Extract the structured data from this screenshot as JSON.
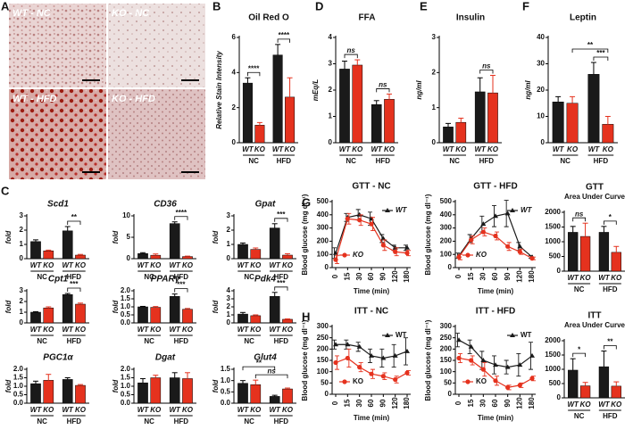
{
  "panel_letters": [
    "A",
    "B",
    "C",
    "D",
    "E",
    "F",
    "G",
    "H"
  ],
  "micrographs": [
    "WT - NC",
    "KO - NC",
    "WT - HFD",
    "KO - HFD"
  ],
  "chart_data": [
    {
      "type": "bar",
      "title": "Oil Red O",
      "ylabel": "Relative Stain Intensity",
      "categories": [
        "WT",
        "KO",
        "WT",
        "KO"
      ],
      "groups": [
        "NC",
        "HFD"
      ],
      "values": [
        3.4,
        1.0,
        5.0,
        2.6
      ],
      "errors": [
        0.3,
        0.15,
        0.6,
        1.1
      ],
      "colors": {
        "WT": "#1a1a1a",
        "KO": "#e5321e"
      },
      "ylim": [
        0,
        6
      ],
      "yticks": [
        0,
        2,
        4,
        6
      ],
      "brackets": [
        {
          "bars": [
            0,
            1
          ],
          "label": "****"
        },
        {
          "bars": [
            2,
            3
          ],
          "label": "****"
        }
      ]
    },
    {
      "type": "bar",
      "title": "FFA",
      "ylabel": "mEq/L",
      "categories": [
        "WT",
        "KO",
        "WT",
        "KO"
      ],
      "groups": [
        "NC",
        "HFD"
      ],
      "values": [
        2.8,
        2.95,
        1.45,
        1.65
      ],
      "errors": [
        0.3,
        0.2,
        0.15,
        0.2
      ],
      "colors": {
        "WT": "#1a1a1a",
        "KO": "#e5321e"
      },
      "ylim": [
        0,
        4
      ],
      "yticks": [
        0,
        1,
        2,
        3,
        4
      ],
      "brackets": [
        {
          "bars": [
            0,
            1
          ],
          "label": "ns"
        },
        {
          "bars": [
            2,
            3
          ],
          "label": "ns"
        }
      ]
    },
    {
      "type": "bar",
      "title": "Insulin",
      "ylabel": "ng/ml",
      "categories": [
        "WT",
        "KO",
        "WT",
        "KO"
      ],
      "groups": [
        "NC",
        "HFD"
      ],
      "values": [
        0.45,
        0.58,
        1.45,
        1.42
      ],
      "errors": [
        0.1,
        0.12,
        0.4,
        0.5
      ],
      "colors": {
        "WT": "#1a1a1a",
        "KO": "#e5321e"
      },
      "ylim": [
        0,
        3
      ],
      "yticks": [
        0,
        1,
        2,
        3
      ],
      "brackets": [
        {
          "bars": [
            2,
            3
          ],
          "label": "ns"
        }
      ]
    },
    {
      "type": "bar",
      "title": "Leptin",
      "ylabel": "ng/ml",
      "categories": [
        "WT",
        "KO",
        "WT",
        "KO"
      ],
      "groups": [
        "NC",
        "HFD"
      ],
      "values": [
        15.5,
        15,
        26,
        7
      ],
      "errors": [
        2,
        2.5,
        4.5,
        3
      ],
      "colors": {
        "WT": "#1a1a1a",
        "KO": "#e5321e"
      },
      "ylim": [
        0,
        40
      ],
      "yticks": [
        0,
        10,
        20,
        30,
        40
      ],
      "brackets": [
        {
          "bars": [
            2,
            3
          ],
          "label": "***"
        },
        {
          "bars": [
            1,
            3
          ],
          "label": "**"
        }
      ]
    },
    {
      "type": "bar",
      "title": "Scd1",
      "ylabel": "fold",
      "categories": [
        "WT",
        "KO",
        "WT",
        "KO"
      ],
      "groups": [
        "NC",
        "HFD"
      ],
      "values": [
        1.2,
        0.55,
        1.95,
        0.25
      ],
      "errors": [
        0.12,
        0.05,
        0.3,
        0.05
      ],
      "colors": {
        "WT": "#1a1a1a",
        "KO": "#e5321e"
      },
      "ylim": [
        0,
        3
      ],
      "yticks": [
        0,
        1,
        2,
        3
      ],
      "brackets": [
        {
          "bars": [
            2,
            3
          ],
          "label": "**"
        }
      ]
    },
    {
      "type": "bar",
      "title": "CD36",
      "ylabel": "fold",
      "categories": [
        "WT",
        "KO",
        "WT",
        "KO"
      ],
      "groups": [
        "NC",
        "HFD"
      ],
      "values": [
        1.2,
        0.8,
        8.2,
        0.5
      ],
      "errors": [
        0.2,
        0.3,
        0.4,
        0.1
      ],
      "colors": {
        "WT": "#1a1a1a",
        "KO": "#e5321e"
      },
      "ylim": [
        0,
        10
      ],
      "yticks": [
        0,
        5,
        10
      ],
      "brackets": [
        {
          "bars": [
            2,
            3
          ],
          "label": "****"
        }
      ]
    },
    {
      "type": "bar",
      "title": "Gpat",
      "ylabel": "fold",
      "categories": [
        "WT",
        "KO",
        "WT",
        "KO"
      ],
      "groups": [
        "NC",
        "HFD"
      ],
      "values": [
        1.0,
        0.65,
        2.15,
        0.25
      ],
      "errors": [
        0.1,
        0.1,
        0.3,
        0.1
      ],
      "colors": {
        "WT": "#1a1a1a",
        "KO": "#e5321e"
      },
      "ylim": [
        0,
        3
      ],
      "yticks": [
        0,
        1,
        2,
        3
      ],
      "brackets": [
        {
          "bars": [
            2,
            3
          ],
          "label": "***"
        }
      ]
    },
    {
      "type": "bar",
      "title": "Cpt1",
      "ylabel": "fold",
      "categories": [
        "WT",
        "KO",
        "WT",
        "KO"
      ],
      "groups": [
        "NC",
        "HFD"
      ],
      "values": [
        1.0,
        1.4,
        2.65,
        1.75
      ],
      "errors": [
        0.05,
        0.1,
        0.1,
        0.1
      ],
      "colors": {
        "WT": "#1a1a1a",
        "KO": "#e5321e"
      },
      "ylim": [
        0,
        3
      ],
      "yticks": [
        0,
        1,
        2,
        3
      ],
      "brackets": [
        {
          "bars": [
            2,
            3
          ],
          "label": "***"
        }
      ]
    },
    {
      "type": "bar",
      "title": "PPARγ",
      "ylabel": "fold",
      "categories": [
        "WT",
        "KO",
        "WT",
        "KO"
      ],
      "groups": [
        "NC",
        "HFD"
      ],
      "values": [
        1.0,
        0.97,
        1.65,
        0.85
      ],
      "errors": [
        0.03,
        0.05,
        0.15,
        0.05
      ],
      "colors": {
        "WT": "#1a1a1a",
        "KO": "#e5321e"
      },
      "ylim": [
        0,
        2
      ],
      "yticks": [
        {
          "value": 0,
          "label": "0.0"
        },
        {
          "value": 0.5,
          "label": "0.5"
        },
        {
          "value": 1,
          "label": "1.0"
        },
        {
          "value": 1.5,
          "label": "1.5"
        },
        {
          "value": 2,
          "label": "2.0"
        }
      ],
      "brackets": [
        {
          "bars": [
            2,
            3
          ],
          "label": "***"
        }
      ]
    },
    {
      "type": "bar",
      "title": "Pdk4",
      "ylabel": "fold",
      "categories": [
        "WT",
        "KO",
        "WT",
        "KO"
      ],
      "groups": [
        "NC",
        "HFD"
      ],
      "values": [
        1.1,
        0.9,
        3.3,
        0.45
      ],
      "errors": [
        0.2,
        0.1,
        0.5,
        0.05
      ],
      "colors": {
        "WT": "#1a1a1a",
        "KO": "#e5321e"
      },
      "ylim": [
        0,
        4
      ],
      "yticks": [
        0,
        1,
        2,
        3,
        4
      ],
      "brackets": [
        {
          "bars": [
            2,
            3
          ],
          "label": "***"
        }
      ]
    },
    {
      "type": "bar",
      "title": "PGC1α",
      "ylabel": "fold",
      "categories": [
        "WT",
        "KO",
        "WT",
        "KO"
      ],
      "groups": [
        "NC",
        "HFD"
      ],
      "values": [
        1.15,
        1.35,
        1.4,
        1.05
      ],
      "errors": [
        0.15,
        0.35,
        0.1,
        0.05
      ],
      "colors": {
        "WT": "#1a1a1a",
        "KO": "#e5321e"
      },
      "ylim": [
        0,
        2
      ],
      "yticks": [
        {
          "value": 0,
          "label": "0.0"
        },
        {
          "value": 0.5,
          "label": "0.5"
        },
        {
          "value": 1,
          "label": "1.0"
        },
        {
          "value": 1.5,
          "label": "1.5"
        },
        {
          "value": 2,
          "label": "2.0"
        }
      ],
      "brackets": []
    },
    {
      "type": "bar",
      "title": "Dgat",
      "ylabel": "fold",
      "categories": [
        "WT",
        "KO",
        "WT",
        "KO"
      ],
      "groups": [
        "NC",
        "HFD"
      ],
      "values": [
        1.2,
        1.5,
        1.5,
        1.45
      ],
      "errors": [
        0.25,
        0.15,
        0.3,
        0.35
      ],
      "colors": {
        "WT": "#1a1a1a",
        "KO": "#e5321e"
      },
      "ylim": [
        0,
        2
      ],
      "yticks": [
        {
          "value": 0,
          "label": "0.0"
        },
        {
          "value": 0.5,
          "label": "0.5"
        },
        {
          "value": 1,
          "label": "1.0"
        },
        {
          "value": 1.5,
          "label": "1.5"
        },
        {
          "value": 2,
          "label": "2.0"
        }
      ],
      "brackets": []
    },
    {
      "type": "bar",
      "title": "Glut4",
      "ylabel": "fold",
      "categories": [
        "WT",
        "KO",
        "WT",
        "KO"
      ],
      "groups": [
        "NC",
        "HFD"
      ],
      "values": [
        0.88,
        0.82,
        0.3,
        0.63
      ],
      "errors": [
        0.12,
        0.2,
        0.05,
        0.04
      ],
      "colors": {
        "WT": "#1a1a1a",
        "KO": "#e5321e"
      },
      "ylim": [
        0,
        1.5
      ],
      "yticks": [
        {
          "value": 0,
          "label": "0.0"
        },
        {
          "value": 0.5,
          "label": "0.5"
        },
        {
          "value": 1,
          "label": "1.0"
        },
        {
          "value": 1.5,
          "label": "1.5"
        }
      ],
      "brackets": [
        {
          "bars": [
            1,
            3
          ],
          "label": "ns"
        },
        {
          "bars": [
            0,
            2
          ],
          "label": "**"
        }
      ]
    },
    {
      "type": "line",
      "title": "GTT - NC",
      "ylabel": "Blood glucose (mg dl⁻¹)",
      "xlabel": "Time (min)",
      "categories": [
        "0",
        "15",
        "30",
        "60",
        "90",
        "120",
        "180"
      ],
      "ylim": [
        0,
        500
      ],
      "yticks": [
        0,
        100,
        200,
        300,
        400,
        500
      ],
      "series": [
        {
          "name": "WT",
          "color": "#1a1a1a",
          "marker": "triangle",
          "values": [
            110,
            380,
            400,
            370,
            220,
            150,
            150
          ],
          "errors": [
            40,
            30,
            40,
            50,
            30,
            20,
            20
          ]
        },
        {
          "name": "KO",
          "color": "#e5321e",
          "marker": "circle",
          "values": [
            60,
            370,
            360,
            330,
            170,
            120,
            110
          ],
          "errors": [
            30,
            40,
            40,
            50,
            40,
            30,
            20
          ]
        }
      ]
    },
    {
      "type": "line",
      "title": "GTT -  HFD",
      "ylabel": "Blood glucose (mg dl⁻¹)",
      "xlabel": "Time (min)",
      "categories": [
        "0",
        "15",
        "30",
        "60",
        "90",
        "120",
        "180"
      ],
      "ylim": [
        0,
        500
      ],
      "yticks": [
        0,
        100,
        200,
        300,
        400,
        500
      ],
      "series": [
        {
          "name": "WT",
          "color": "#1a1a1a",
          "marker": "triangle",
          "values": [
            90,
            220,
            330,
            390,
            410,
            160,
            80
          ],
          "errors": [
            20,
            30,
            60,
            80,
            100,
            30,
            10
          ]
        },
        {
          "name": "KO",
          "color": "#e5321e",
          "marker": "circle",
          "values": [
            80,
            210,
            270,
            240,
            160,
            120,
            70
          ],
          "errors": [
            20,
            30,
            30,
            30,
            30,
            20,
            10
          ]
        }
      ]
    },
    {
      "type": "bar",
      "title": "GTT",
      "subtitle": "Area Under Curve",
      "categories": [
        "WT",
        "KO",
        "WT",
        "KO"
      ],
      "groups": [
        "NC",
        "HFD"
      ],
      "values": [
        1320,
        1180,
        1320,
        640
      ],
      "errors": [
        200,
        450,
        200,
        200
      ],
      "colors": {
        "WT": "#1a1a1a",
        "KO": "#e5321e"
      },
      "ylim": [
        0,
        2000
      ],
      "yticks": [
        0,
        500,
        1000,
        1500,
        2000
      ],
      "brackets": [
        {
          "bars": [
            0,
            1
          ],
          "label": "ns"
        },
        {
          "bars": [
            2,
            3
          ],
          "label": "*"
        }
      ]
    },
    {
      "type": "line",
      "title": "ITT - NC",
      "ylabel": "Blood glucose (mg dl⁻¹)",
      "xlabel": "Time (min)",
      "categories": [
        "0",
        "15",
        "30",
        "60",
        "90",
        "120",
        "180"
      ],
      "ylim": [
        0,
        300
      ],
      "yticks": [
        0,
        50,
        100,
        150,
        200,
        250,
        300
      ],
      "series": [
        {
          "name": "WT",
          "color": "#1a1a1a",
          "marker": "triangle",
          "values": [
            220,
            220,
            210,
            170,
            160,
            170,
            190
          ],
          "errors": [
            20,
            20,
            20,
            30,
            40,
            50,
            60
          ]
        },
        {
          "name": "KO",
          "color": "#e5321e",
          "marker": "circle",
          "values": [
            140,
            160,
            120,
            90,
            80,
            65,
            95
          ],
          "errors": [
            30,
            40,
            20,
            20,
            15,
            15,
            10
          ]
        }
      ]
    },
    {
      "type": "line",
      "title": "ITT -  HFD",
      "ylabel": "Blood glucose (mg dl⁻¹)",
      "xlabel": "Time (min)",
      "categories": [
        "0",
        "15",
        "30",
        "60",
        "90",
        "120",
        "180"
      ],
      "ylim": [
        0,
        300
      ],
      "yticks": [
        0,
        50,
        100,
        150,
        200,
        250,
        300
      ],
      "series": [
        {
          "name": "WT",
          "color": "#1a1a1a",
          "marker": "triangle",
          "values": [
            240,
            210,
            150,
            130,
            120,
            130,
            170
          ],
          "errors": [
            30,
            30,
            40,
            40,
            30,
            50,
            60
          ]
        },
        {
          "name": "KO",
          "color": "#e5321e",
          "marker": "circle",
          "values": [
            160,
            150,
            110,
            60,
            30,
            40,
            70
          ],
          "errors": [
            20,
            20,
            30,
            20,
            10,
            10,
            10
          ]
        }
      ]
    },
    {
      "type": "bar",
      "title": "ITT",
      "subtitle": "Area Under Curve",
      "categories": [
        "WT",
        "KO",
        "WT",
        "KO"
      ],
      "groups": [
        "NC",
        "HFD"
      ],
      "values": [
        970,
        420,
        1090,
        410
      ],
      "errors": [
        400,
        120,
        550,
        150
      ],
      "colors": {
        "WT": "#1a1a1a",
        "KO": "#e5321e"
      },
      "ylim": [
        0,
        2000
      ],
      "yticks": [
        0,
        500,
        1000,
        1500,
        2000
      ],
      "brackets": [
        {
          "bars": [
            0,
            1
          ],
          "label": "*"
        },
        {
          "bars": [
            2,
            3
          ],
          "label": "**"
        }
      ]
    }
  ]
}
